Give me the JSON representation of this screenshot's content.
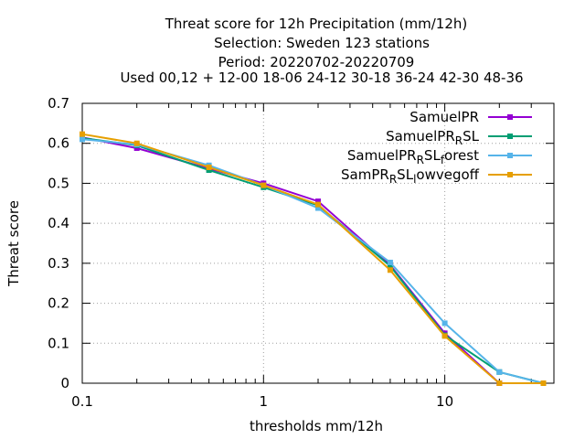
{
  "chart_data": {
    "type": "line",
    "title_lines": [
      "Threat score  for 12h Precipitation (mm/12h)",
      "Selection: Sweden     123 stations",
      "Period: 20220702-20220709",
      "Used  00,12  + 12-00 18-06 24-12 30-18 36-24 42-30 48-36"
    ],
    "xlabel": "thresholds mm/12h",
    "ylabel": "Threat score",
    "x_scale": "log",
    "xlim": [
      0.1,
      40
    ],
    "ylim": [
      0,
      0.7
    ],
    "x_ticks": [
      0.1,
      1,
      10
    ],
    "x_tick_labels": [
      "0.1",
      "1",
      "10"
    ],
    "y_ticks": [
      0,
      0.1,
      0.2,
      0.3,
      0.4,
      0.5,
      0.6,
      0.7
    ],
    "y_tick_labels": [
      "0",
      "0.1",
      "0.2",
      "0.3",
      "0.4",
      "0.5",
      "0.6",
      "0.7"
    ],
    "grid": true,
    "legend_position": "top-right",
    "x": [
      0.1,
      0.2,
      0.5,
      1,
      2,
      5,
      10,
      20,
      35
    ],
    "series": [
      {
        "name": "SamuelPR",
        "label_main": "SamuelPR",
        "color": "#9400d3",
        "values": [
          0.615,
          0.588,
          0.537,
          0.5,
          0.455,
          0.295,
          0.125,
          0.0,
          0.0
        ]
      },
      {
        "name": "SamuelPR_RSL",
        "label_main": "SamuelPR",
        "label_sub": "R",
        "label_tail": "SL",
        "color": "#009e73",
        "values": [
          0.613,
          0.595,
          0.533,
          0.49,
          0.445,
          0.293,
          0.12,
          0.028,
          0.0
        ]
      },
      {
        "name": "SamuelPR_RSL_forest",
        "label_main": "SamuelPR",
        "label_sub": "R",
        "label_tail": "SL",
        "label_sub2": "f",
        "label_tail2": "orest",
        "color": "#56b4e9",
        "values": [
          0.61,
          0.597,
          0.545,
          0.495,
          0.438,
          0.302,
          0.15,
          0.028,
          0.0
        ]
      },
      {
        "name": "SamPR_RSL_lowvegoff",
        "label_main": "SamPR",
        "label_sub": "R",
        "label_tail": "SL",
        "label_sub2": "l",
        "label_tail2": "owvegoff",
        "color": "#e69f00",
        "values": [
          0.623,
          0.6,
          0.54,
          0.495,
          0.447,
          0.283,
          0.118,
          0.0,
          0.0
        ]
      }
    ]
  }
}
